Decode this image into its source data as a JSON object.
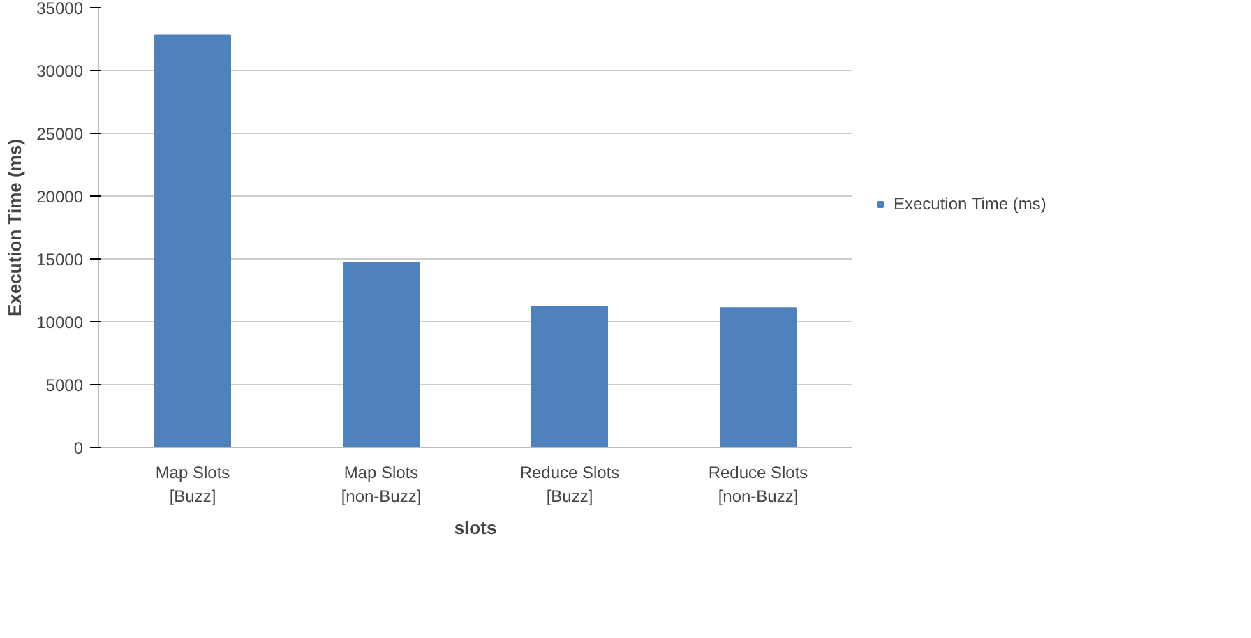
{
  "chart_data": {
    "type": "bar",
    "xlabel": "slots",
    "ylabel": "Execution Time (ms)",
    "categories": [
      "Map Slots [Buzz]",
      "Map Slots [non-Buzz]",
      "Reduce Slots [Buzz]",
      "Reduce Slots [non-Buzz]"
    ],
    "series": [
      {
        "name": "Execution Time (ms)",
        "color": "#4f81bd",
        "values": [
          32800,
          14700,
          11200,
          11100
        ]
      }
    ],
    "ylim": [
      0,
      35000
    ],
    "yticks": [
      0,
      5000,
      10000,
      15000,
      20000,
      25000,
      30000,
      35000
    ],
    "grid": "y",
    "legend": "right"
  }
}
